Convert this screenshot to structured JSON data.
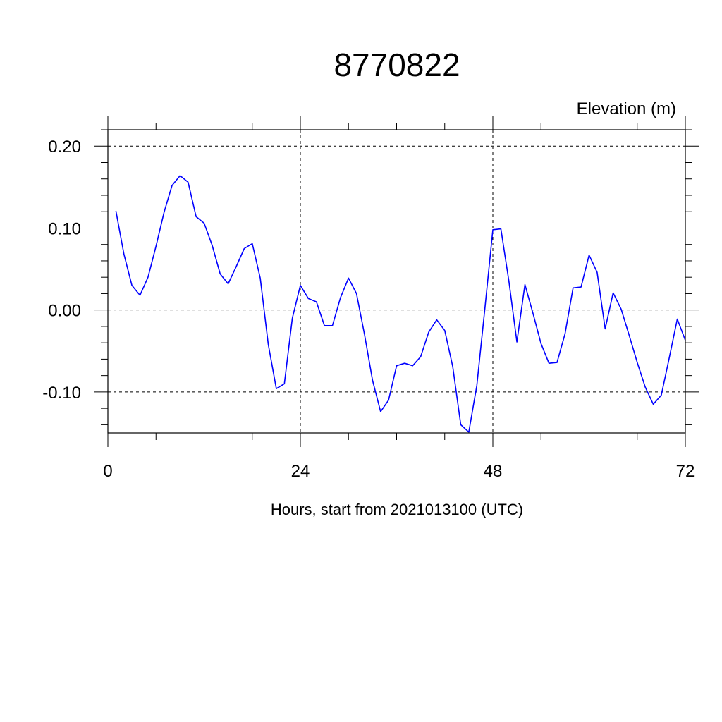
{
  "chart_data": {
    "type": "line",
    "title": "8770822",
    "subtitle": "Elevation (m)",
    "xlabel": "Hours, start from 2021013100 (UTC)",
    "ylabel": "",
    "xlim": [
      0,
      72
    ],
    "ylim": [
      -0.15,
      0.22
    ],
    "xticks": [
      0,
      24,
      48,
      72
    ],
    "xtick_labels": [
      "0",
      "24",
      "48",
      "72"
    ],
    "yticks": [
      0.2,
      0.1,
      0.0,
      -0.1
    ],
    "ytick_labels": [
      "0.20",
      "0.10",
      "0.00",
      "-0.10"
    ],
    "grid": true,
    "line_color": "#0000ff",
    "series": [
      {
        "x": [
          1,
          2,
          3,
          4,
          5,
          6,
          7,
          8,
          9,
          10,
          11,
          12,
          13,
          14,
          15,
          16,
          17,
          18,
          19,
          20,
          21,
          22,
          23,
          24,
          25,
          26,
          27,
          28,
          29,
          30,
          31,
          32,
          33,
          34,
          35,
          36,
          37,
          38,
          39,
          40,
          41,
          42,
          43,
          44,
          45,
          46,
          47,
          48,
          49,
          50,
          51,
          52,
          53,
          54,
          55,
          56,
          57,
          58,
          59,
          60,
          61,
          62,
          63,
          64,
          65,
          66,
          67,
          68,
          69,
          70,
          71,
          72
        ],
        "y": [
          0.121,
          0.068,
          0.03,
          0.018,
          0.04,
          0.078,
          0.119,
          0.152,
          0.164,
          0.156,
          0.114,
          0.106,
          0.079,
          0.044,
          0.032,
          0.053,
          0.075,
          0.081,
          0.039,
          -0.042,
          -0.096,
          -0.09,
          -0.01,
          0.03,
          0.014,
          0.01,
          -0.019,
          -0.019,
          0.015,
          0.039,
          0.02,
          -0.03,
          -0.086,
          -0.124,
          -0.11,
          -0.068,
          -0.065,
          -0.068,
          -0.057,
          -0.027,
          -0.012,
          -0.025,
          -0.069,
          -0.14,
          -0.149,
          -0.092,
          0.001,
          0.098,
          0.099,
          0.035,
          -0.039,
          0.031,
          -0.004,
          -0.041,
          -0.065,
          -0.064,
          -0.029,
          0.027,
          0.028,
          0.067,
          0.046,
          -0.023,
          0.021,
          0.001,
          -0.031,
          -0.064,
          -0.094,
          -0.115,
          -0.104,
          -0.058,
          -0.011,
          -0.037
        ]
      }
    ]
  }
}
